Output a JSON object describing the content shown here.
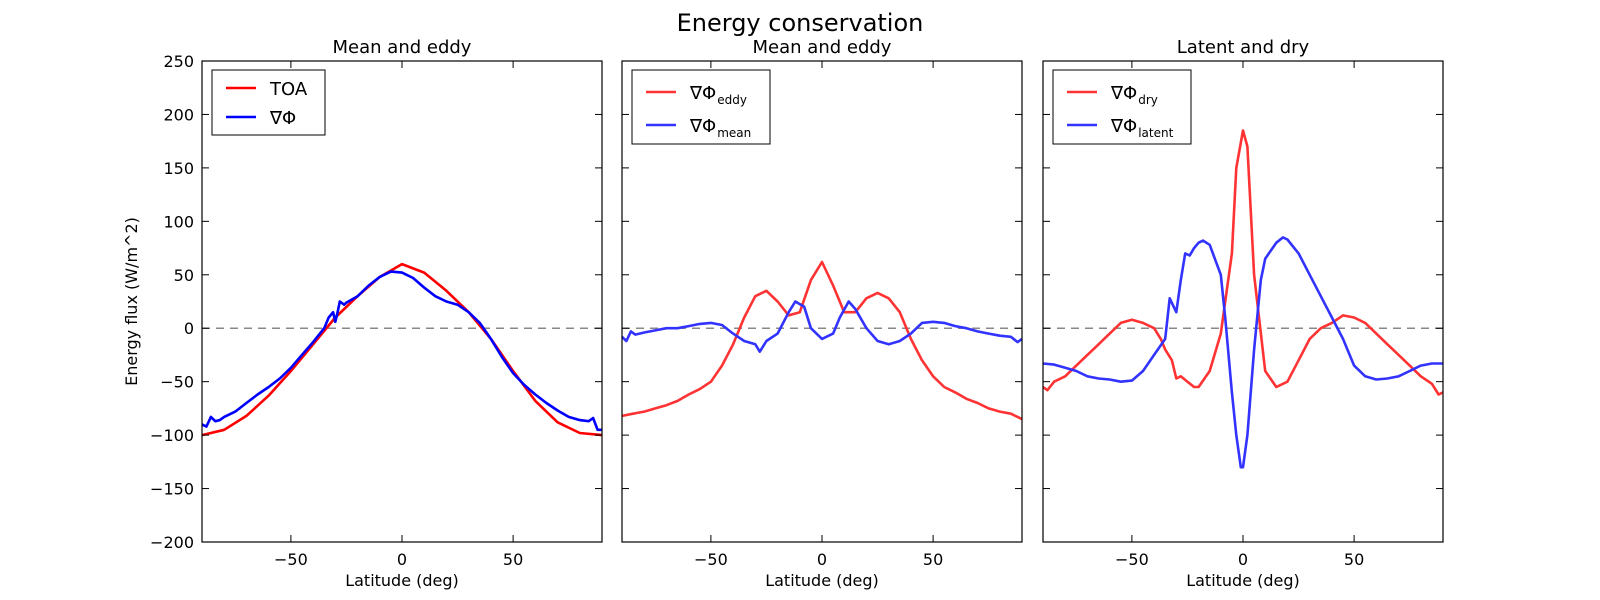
{
  "figure": {
    "title": "Energy conservation"
  },
  "chart_data": [
    {
      "type": "line",
      "title": "Mean and eddy",
      "xlabel": "Latitude (deg)",
      "ylabel": "Energy flux (W/m^2)",
      "xlim": [
        -90,
        90
      ],
      "ylim": [
        -200,
        250
      ],
      "xticks": [
        -50,
        0,
        50
      ],
      "yticks": [
        -200,
        -150,
        -100,
        -50,
        0,
        50,
        100,
        150,
        200,
        250
      ],
      "xtick_labels": [
        "−50",
        "0",
        "50"
      ],
      "ytick_labels": [
        "−200",
        "−150",
        "−100",
        "−50",
        "0",
        "50",
        "100",
        "150",
        "200",
        "250"
      ],
      "zero_line": true,
      "legend_position": "top-left",
      "series": [
        {
          "name": "TOA",
          "color": "#ff0000",
          "x": [
            -90,
            -80,
            -70,
            -60,
            -50,
            -40,
            -30,
            -20,
            -10,
            0,
            10,
            20,
            30,
            40,
            50,
            60,
            70,
            80,
            90
          ],
          "y": [
            -100,
            -95,
            -82,
            -63,
            -40,
            -15,
            10,
            30,
            48,
            60,
            52,
            35,
            15,
            -10,
            -40,
            -68,
            -88,
            -98,
            -100
          ]
        },
        {
          "name": "∇Φ",
          "color": "#0000ff",
          "x": [
            -90,
            -88,
            -86,
            -84,
            -82,
            -80,
            -75,
            -70,
            -65,
            -60,
            -55,
            -50,
            -45,
            -40,
            -35,
            -33,
            -31,
            -30,
            -29,
            -28,
            -26,
            -25,
            -20,
            -15,
            -10,
            -5,
            0,
            5,
            10,
            15,
            20,
            25,
            30,
            35,
            40,
            45,
            50,
            55,
            60,
            65,
            70,
            75,
            80,
            84,
            86,
            88,
            90
          ],
          "y": [
            -90,
            -92,
            -83,
            -87,
            -86,
            -83,
            -78,
            -70,
            -62,
            -55,
            -47,
            -37,
            -25,
            -13,
            0,
            10,
            15,
            6,
            15,
            25,
            22,
            24,
            30,
            40,
            48,
            53,
            52,
            47,
            38,
            30,
            25,
            22,
            15,
            5,
            -10,
            -27,
            -42,
            -53,
            -62,
            -70,
            -77,
            -83,
            -86,
            -87,
            -84,
            -95,
            -95
          ]
        }
      ]
    },
    {
      "type": "line",
      "title": "Mean and eddy",
      "xlabel": "Latitude (deg)",
      "ylabel": "",
      "xlim": [
        -90,
        90
      ],
      "ylim": [
        -200,
        250
      ],
      "xticks": [
        -50,
        0,
        50
      ],
      "yticks": [
        -200,
        -150,
        -100,
        -50,
        0,
        50,
        100,
        150,
        200,
        250
      ],
      "xtick_labels": [
        "−50",
        "0",
        "50"
      ],
      "zero_line": true,
      "legend_position": "top-left",
      "series": [
        {
          "name_base": "∇Φ",
          "name_sub": "eddy",
          "color": "#ff3333",
          "x": [
            -90,
            -85,
            -80,
            -75,
            -70,
            -65,
            -60,
            -55,
            -50,
            -45,
            -40,
            -35,
            -30,
            -25,
            -20,
            -15,
            -10,
            -5,
            0,
            5,
            10,
            15,
            20,
            25,
            30,
            35,
            40,
            45,
            50,
            55,
            60,
            65,
            70,
            75,
            80,
            85,
            90
          ],
          "y": [
            -82,
            -80,
            -78,
            -75,
            -72,
            -68,
            -62,
            -57,
            -50,
            -35,
            -15,
            10,
            30,
            35,
            25,
            12,
            15,
            45,
            62,
            40,
            15,
            15,
            28,
            33,
            28,
            15,
            -10,
            -30,
            -45,
            -55,
            -60,
            -66,
            -70,
            -75,
            -78,
            -80,
            -85
          ]
        },
        {
          "name_base": "∇Φ",
          "name_sub": "mean",
          "color": "#3333ff",
          "x": [
            -90,
            -88,
            -86,
            -84,
            -80,
            -75,
            -70,
            -65,
            -60,
            -55,
            -50,
            -45,
            -40,
            -35,
            -30,
            -28,
            -25,
            -20,
            -15,
            -12,
            -8,
            -5,
            0,
            5,
            8,
            12,
            15,
            20,
            25,
            30,
            35,
            40,
            45,
            50,
            55,
            60,
            65,
            70,
            75,
            80,
            85,
            88,
            90
          ],
          "y": [
            -8,
            -12,
            -3,
            -6,
            -4,
            -2,
            0,
            0,
            2,
            4,
            5,
            3,
            -5,
            -12,
            -15,
            -22,
            -12,
            -5,
            15,
            25,
            20,
            0,
            -10,
            -5,
            10,
            25,
            18,
            0,
            -12,
            -15,
            -12,
            -5,
            5,
            6,
            5,
            2,
            0,
            -3,
            -5,
            -7,
            -8,
            -13,
            -10
          ]
        }
      ]
    },
    {
      "type": "line",
      "title": "Latent and dry",
      "xlabel": "Latitude (deg)",
      "ylabel": "",
      "xlim": [
        -90,
        90
      ],
      "ylim": [
        -200,
        250
      ],
      "xticks": [
        -50,
        0,
        50
      ],
      "yticks": [
        -200,
        -150,
        -100,
        -50,
        0,
        50,
        100,
        150,
        200,
        250
      ],
      "xtick_labels": [
        "−50",
        "0",
        "50"
      ],
      "zero_line": true,
      "legend_position": "top-left",
      "series": [
        {
          "name_base": "∇Φ",
          "name_sub": "dry",
          "color": "#ff3333",
          "x": [
            -90,
            -88,
            -85,
            -80,
            -75,
            -70,
            -65,
            -60,
            -55,
            -50,
            -45,
            -40,
            -37,
            -35,
            -32,
            -30,
            -28,
            -25,
            -22,
            -20,
            -15,
            -10,
            -5,
            -3,
            0,
            2,
            5,
            10,
            15,
            20,
            25,
            30,
            35,
            40,
            45,
            50,
            55,
            60,
            65,
            70,
            75,
            80,
            85,
            88,
            90
          ],
          "y": [
            -55,
            -58,
            -50,
            -45,
            -35,
            -25,
            -15,
            -5,
            5,
            8,
            5,
            0,
            -10,
            -20,
            -30,
            -47,
            -45,
            -50,
            -55,
            -55,
            -40,
            -5,
            70,
            150,
            185,
            170,
            50,
            -40,
            -55,
            -50,
            -30,
            -10,
            0,
            5,
            12,
            10,
            5,
            -5,
            -15,
            -25,
            -35,
            -45,
            -52,
            -62,
            -60
          ]
        },
        {
          "name_base": "∇Φ",
          "name_sub": "latent",
          "color": "#3333ff",
          "x": [
            -90,
            -85,
            -80,
            -75,
            -70,
            -65,
            -60,
            -55,
            -50,
            -45,
            -40,
            -35,
            -33,
            -30,
            -28,
            -26,
            -24,
            -22,
            -20,
            -18,
            -15,
            -10,
            -8,
            -5,
            -3,
            -1,
            0,
            2,
            5,
            8,
            10,
            15,
            18,
            20,
            25,
            30,
            35,
            40,
            45,
            50,
            55,
            60,
            65,
            70,
            75,
            80,
            85,
            90
          ],
          "y": [
            -33,
            -34,
            -37,
            -40,
            -45,
            -47,
            -48,
            -50,
            -49,
            -40,
            -25,
            -10,
            28,
            15,
            45,
            70,
            68,
            75,
            80,
            82,
            78,
            50,
            10,
            -60,
            -100,
            -130,
            -130,
            -100,
            -20,
            45,
            65,
            80,
            85,
            83,
            70,
            50,
            30,
            10,
            -10,
            -35,
            -45,
            -48,
            -47,
            -45,
            -40,
            -35,
            -33,
            -33
          ]
        }
      ]
    }
  ]
}
